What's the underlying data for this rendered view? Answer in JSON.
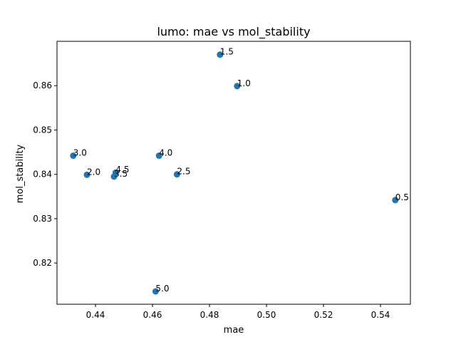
{
  "chart_data": {
    "type": "scatter",
    "title": "lumo: mae vs mol_stability",
    "xlabel": "mae",
    "ylabel": "mol_stability",
    "xlim": [
      0.4265,
      0.5505
    ],
    "ylim": [
      0.8107,
      0.87
    ],
    "xticks": [
      0.44,
      0.46,
      0.48,
      0.5,
      0.52,
      0.54
    ],
    "xtick_labels": [
      "0.44",
      "0.46",
      "0.48",
      "0.50",
      "0.52",
      "0.54"
    ],
    "yticks": [
      0.82,
      0.83,
      0.84,
      0.85,
      0.86
    ],
    "ytick_labels": [
      "0.82",
      "0.83",
      "0.84",
      "0.85",
      "0.86"
    ],
    "grid": false,
    "marker_color": "#1f77b4",
    "points": [
      {
        "label": "0.5",
        "x": 0.5452,
        "y": 0.8342
      },
      {
        "label": "1.0",
        "x": 0.4897,
        "y": 0.8599
      },
      {
        "label": "1.5",
        "x": 0.4837,
        "y": 0.867
      },
      {
        "label": "2.0",
        "x": 0.437,
        "y": 0.8399
      },
      {
        "label": "2.5",
        "x": 0.4686,
        "y": 0.84
      },
      {
        "label": "3.0",
        "x": 0.4322,
        "y": 0.8442
      },
      {
        "label": "3.5",
        "x": 0.4465,
        "y": 0.8395
      },
      {
        "label": "4.0",
        "x": 0.4623,
        "y": 0.8442
      },
      {
        "label": "4.5",
        "x": 0.4471,
        "y": 0.8404
      },
      {
        "label": "5.0",
        "x": 0.4611,
        "y": 0.8136
      }
    ]
  }
}
